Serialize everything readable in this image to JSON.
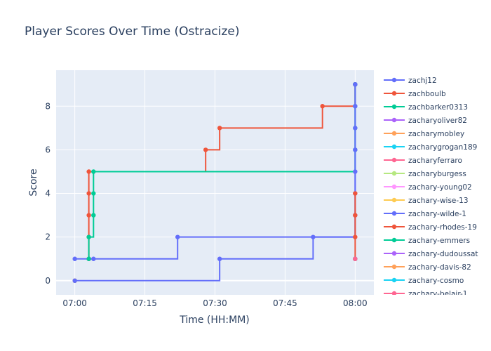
{
  "chart_data": {
    "type": "line",
    "line_shape": "step",
    "title": "Player Scores Over Time (Ostracize)",
    "xlabel": "Time (HH:MM)",
    "ylabel": "Score",
    "xlim": [
      "06:56",
      "08:04"
    ],
    "ylim": [
      -0.65,
      9.65
    ],
    "x_ticks": [
      "07:00",
      "07:15",
      "07:30",
      "07:45",
      "08:00"
    ],
    "y_ticks": [
      0,
      2,
      4,
      6,
      8
    ],
    "grid": true,
    "plot_background": "#e5ecf6",
    "legend_position": "right",
    "series": [
      {
        "name": "zachj12",
        "color": "#636efa",
        "x": [
          "07:00",
          "07:03",
          "07:04",
          "07:22",
          "08:00"
        ],
        "y": [
          1,
          1,
          1,
          2,
          9
        ]
      },
      {
        "name": "zachboulb",
        "color": "#ef553b",
        "x": [
          "07:03",
          "07:03",
          "07:03",
          "07:03",
          "07:03",
          "07:28",
          "07:31",
          "07:53",
          "08:00"
        ],
        "y": [
          1,
          2,
          3,
          4,
          5,
          6,
          7,
          8,
          9
        ]
      },
      {
        "name": "zachbarker0313",
        "color": "#00cc96",
        "x": [
          "07:03",
          "07:03",
          "07:04",
          "07:04",
          "07:04",
          "08:00",
          "08:00",
          "08:00",
          "08:00"
        ],
        "y": [
          1,
          2,
          3,
          4,
          5,
          6,
          7,
          8,
          9
        ]
      },
      {
        "name": "zacharyoliver82",
        "color": "#ab63fa",
        "x": [
          "08:00"
        ],
        "y": [
          1
        ]
      },
      {
        "name": "zacharymobley",
        "color": "#ffa15a",
        "x": [
          "07:00"
        ],
        "y": [
          0
        ]
      },
      {
        "name": "zacharygrogan189",
        "color": "#19d3f3",
        "x": [
          "08:00"
        ],
        "y": [
          1
        ]
      },
      {
        "name": "zacharyferraro",
        "color": "#ff6692",
        "x": [
          "08:00"
        ],
        "y": [
          1
        ]
      },
      {
        "name": "zacharyburgess",
        "color": "#b6e880",
        "x": [
          "08:00"
        ],
        "y": [
          1
        ]
      },
      {
        "name": "zachary-young02",
        "color": "#ff97ff",
        "x": [
          "08:00"
        ],
        "y": [
          1
        ]
      },
      {
        "name": "zachary-wise-13",
        "color": "#fecb52",
        "x": [
          "07:00"
        ],
        "y": [
          0
        ]
      },
      {
        "name": "zachary-wilde-1",
        "color": "#636efa",
        "x": [
          "07:00",
          "07:31",
          "07:51",
          "08:00",
          "08:00",
          "08:00",
          "08:00",
          "08:00",
          "08:00",
          "08:00"
        ],
        "y": [
          0,
          1,
          2,
          3,
          4,
          5,
          6,
          7,
          8,
          9
        ]
      },
      {
        "name": "zachary-rhodes-19",
        "color": "#ef553b",
        "x": [
          "08:00",
          "08:00",
          "08:00",
          "08:00"
        ],
        "y": [
          1,
          2,
          3,
          4
        ]
      },
      {
        "name": "zachary-emmers",
        "color": "#00cc96",
        "x": [
          "08:00"
        ],
        "y": [
          1
        ]
      },
      {
        "name": "zachary-dudoussat",
        "color": "#ab63fa",
        "x": [
          "08:00"
        ],
        "y": [
          1
        ]
      },
      {
        "name": "zachary-davis-82",
        "color": "#ffa15a",
        "x": [
          "08:00"
        ],
        "y": [
          1
        ]
      },
      {
        "name": "zachary-cosmo",
        "color": "#19d3f3",
        "x": [
          "08:00"
        ],
        "y": [
          1
        ]
      },
      {
        "name": "zachary-belair-1",
        "color": "#ff6692",
        "x": [
          "08:00"
        ],
        "y": [
          1
        ]
      }
    ]
  }
}
